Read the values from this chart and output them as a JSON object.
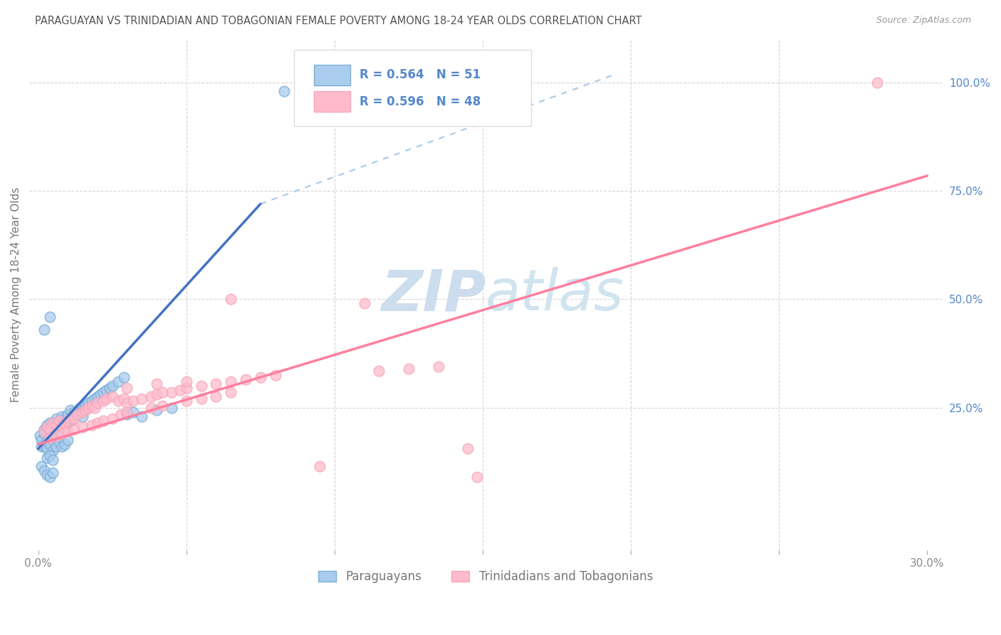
{
  "title": "PARAGUAYAN VS TRINIDADIAN AND TOBAGONIAN FEMALE POVERTY AMONG 18-24 YEAR OLDS CORRELATION CHART",
  "source": "Source: ZipAtlas.com",
  "ylabel": "Female Poverty Among 18-24 Year Olds",
  "xlim": [
    -0.003,
    0.305
  ],
  "ylim": [
    -0.08,
    1.1
  ],
  "background_color": "#ffffff",
  "blue_color": "#7BAFD4",
  "pink_color": "#F4A7B9",
  "blue_scatter_fill": "#aaccee",
  "pink_scatter_fill": "#ffbbcc",
  "blue_line_color": "#4472C4",
  "pink_line_color": "#FF7F9E",
  "dashed_line_color": "#aac8e8",
  "grid_color": "#cccccc",
  "blue_label": "Paraguayans",
  "pink_label": "Trinidadians and Tobagonians",
  "watermark": "ZIPatlas",
  "watermark_color": "#ccdded",
  "title_color": "#555555",
  "right_tick_color": "#5588cc",
  "legend_r_blue": "R = 0.564",
  "legend_n_blue": "N = 51",
  "legend_r_pink": "R = 0.596",
  "legend_n_pink": "N = 48",
  "blue_line_x0": 0.0,
  "blue_line_y0": 0.155,
  "blue_line_x1": 0.075,
  "blue_line_y1": 0.72,
  "dashed_line_x0": 0.075,
  "dashed_line_y0": 0.72,
  "dashed_line_x1": 0.195,
  "dashed_line_y1": 1.02,
  "pink_line_x0": 0.0,
  "pink_line_y0": 0.165,
  "pink_line_x1": 0.3,
  "pink_line_y1": 0.785
}
